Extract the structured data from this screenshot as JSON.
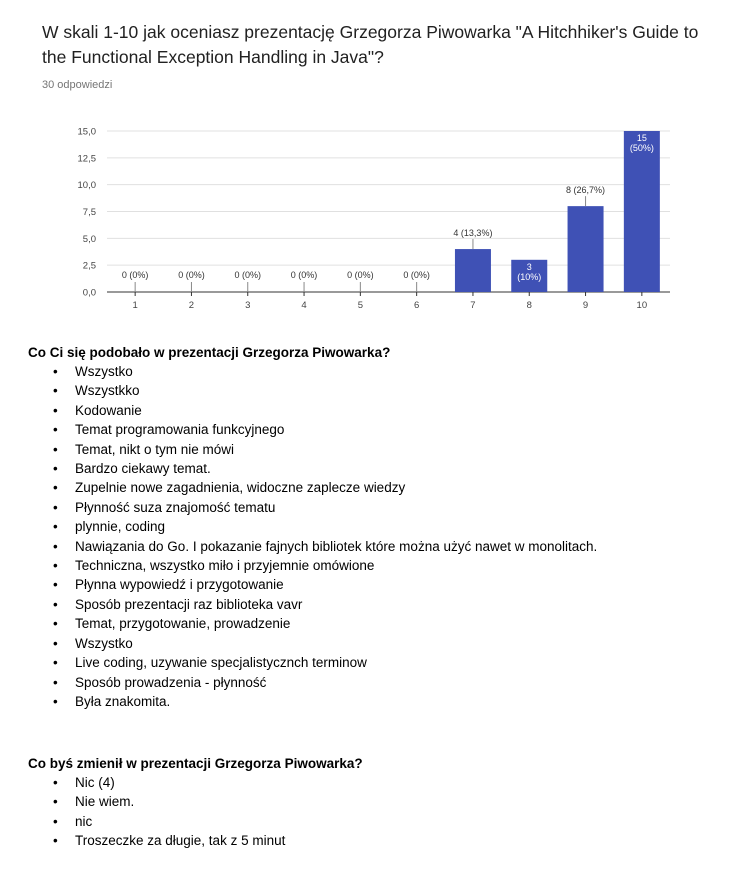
{
  "survey": {
    "question": "W skali 1-10 jak oceniasz prezentację Grzegorza Piwowarka \"A Hitchhiker's Guide to the Functional Exception Handling in Java\"?",
    "response_count": "30 odpowiedzi"
  },
  "chart_data": {
    "type": "bar",
    "categories": [
      "1",
      "2",
      "3",
      "4",
      "5",
      "6",
      "7",
      "8",
      "9",
      "10"
    ],
    "values": [
      0,
      0,
      0,
      0,
      0,
      0,
      4,
      3,
      8,
      15
    ],
    "data_labels": [
      "0 (0%)",
      "0 (0%)",
      "0 (0%)",
      "0 (0%)",
      "0 (0%)",
      "0 (0%)",
      "4 (13,3%)",
      "3 (10%)",
      "8 (26,7%)",
      "15 (50%)"
    ],
    "ylim": [
      0,
      15
    ],
    "yticks": [
      "0,0",
      "2,5",
      "5,0",
      "7,5",
      "10,0",
      "12,5",
      "15,0"
    ],
    "grid": true,
    "bar_color": "#3f51b5"
  },
  "likes": {
    "heading": "Co Ci się podobało w prezentacji Grzegorza Piwowarka?",
    "items": [
      "Wszystko",
      "Wszystkko",
      "Kodowanie",
      "Temat programowania funkcyjnego",
      "Temat, nikt o tym nie mówi",
      "Bardzo ciekawy temat.",
      "Zupelnie nowe zagadnienia, widoczne zaplecze wiedzy",
      "Płynność suza znajomość tematu",
      "plynnie, coding",
      "Nawiązania do Go. I pokazanie fajnych bibliotek które można użyć nawet w monolitach.",
      "Techniczna, wszystko miło i przyjemnie omówione",
      "Płynna wypowiedź i przygotowanie",
      "Sposób prezentacji raz biblioteka vavr",
      "Temat, przygotowanie, prowadzenie",
      "Wszystko",
      "Live coding, uzywanie specjalistycznch terminow",
      "Sposób prowadzenia - płynność",
      "Była znakomita."
    ]
  },
  "changes": {
    "heading": "Co byś zmienił w prezentacji Grzegorza Piwowarka?",
    "items": [
      "Nic (4)",
      "Nie wiem.",
      "nic",
      "Troszeczke za długie, tak z 5 minut"
    ]
  }
}
